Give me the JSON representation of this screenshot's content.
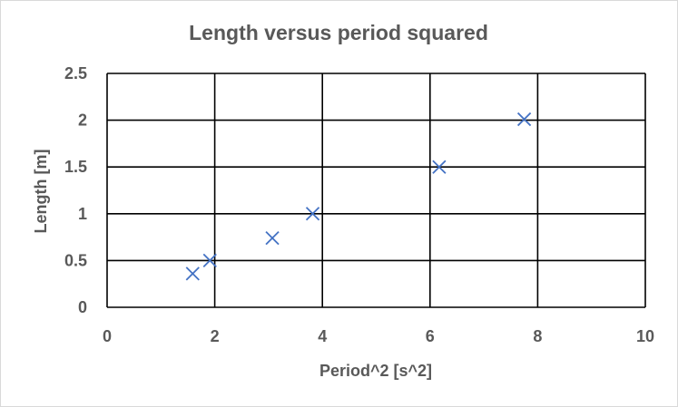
{
  "chart_data": {
    "type": "scatter",
    "title": "Length versus period squared",
    "xlabel": "Period^2 [s^2]",
    "ylabel": "Length [m]",
    "xlim": [
      0,
      10
    ],
    "ylim": [
      0,
      2.5
    ],
    "xticks": [
      0,
      2,
      4,
      6,
      8,
      10
    ],
    "yticks": [
      0,
      0.5,
      1,
      1.5,
      2,
      2.5
    ],
    "xtick_labels": [
      "0",
      "2",
      "4",
      "6",
      "8",
      "10"
    ],
    "ytick_labels": [
      "0",
      "0.5",
      "1",
      "1.5",
      "2",
      "2.5"
    ],
    "grid": true,
    "legend": "none",
    "marker": "x",
    "marker_color": "#4472c4",
    "grid_color": "#000000",
    "series": [
      {
        "points": [
          {
            "x": 1.59,
            "y": 0.36
          },
          {
            "x": 1.91,
            "y": 0.5
          },
          {
            "x": 3.07,
            "y": 0.74
          },
          {
            "x": 3.82,
            "y": 1.0
          },
          {
            "x": 6.17,
            "y": 1.5
          },
          {
            "x": 7.75,
            "y": 2.01
          }
        ]
      }
    ]
  }
}
